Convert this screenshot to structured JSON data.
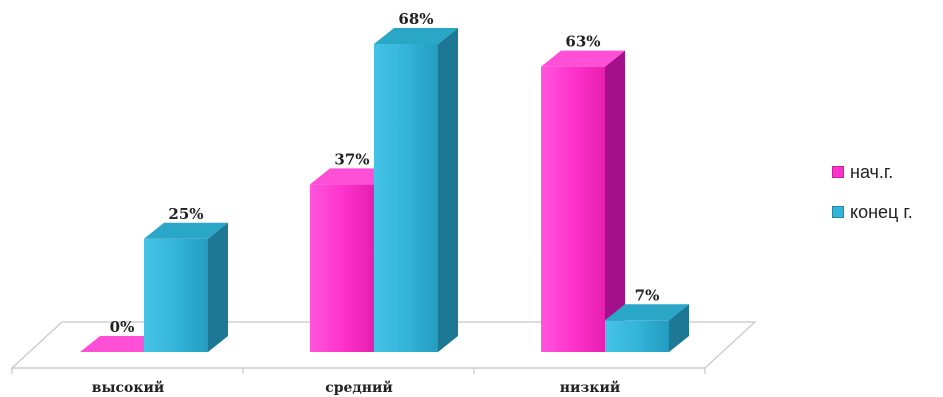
{
  "chart_data": {
    "type": "bar",
    "title": "",
    "xlabel": "",
    "ylabel": "",
    "categories": [
      "высокий",
      "средний",
      "низкий"
    ],
    "series": [
      {
        "name": "нач.г.",
        "values": [
          0,
          37,
          63
        ],
        "labels": [
          "0%",
          "37%",
          "63%"
        ],
        "color": "#FF33CC"
      },
      {
        "name": "конец г.",
        "values": [
          25,
          68,
          7
        ],
        "labels": [
          "25%",
          "68%",
          "7%"
        ],
        "color": "#33B5D9"
      }
    ],
    "ylim": [
      0,
      68
    ],
    "grid": false,
    "legend_position": "right",
    "style": "3d-column"
  }
}
